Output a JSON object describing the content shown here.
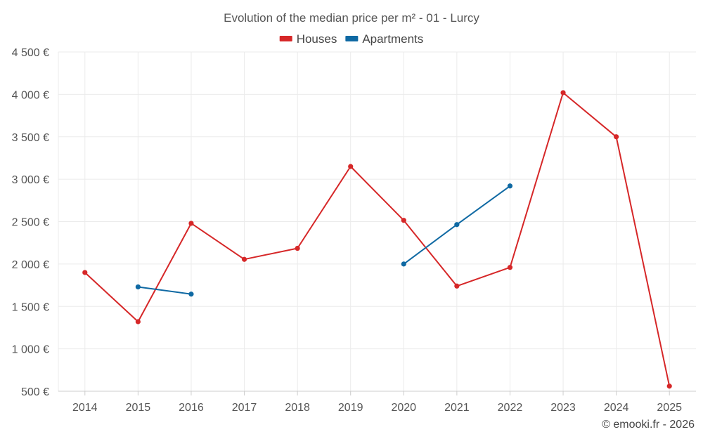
{
  "chart_data": {
    "type": "line",
    "title": "Evolution of the median price per m² - 01 - Lurcy",
    "categories": [
      "2014",
      "2015",
      "2016",
      "2017",
      "2018",
      "2019",
      "2020",
      "2021",
      "2022",
      "2023",
      "2024",
      "2025"
    ],
    "ylim": [
      500,
      4500
    ],
    "yticks": [
      500,
      1000,
      1500,
      2000,
      2500,
      3000,
      3500,
      4000,
      4500
    ],
    "ytick_labels": [
      "500 €",
      "1 000 €",
      "1 500 €",
      "2 000 €",
      "2 500 €",
      "3 000 €",
      "3 500 €",
      "4 000 €",
      "4 500 €"
    ],
    "xlabel": "",
    "ylabel": "",
    "legend_position": "top-center",
    "grid": true,
    "series": [
      {
        "name": "Houses",
        "color": "#d62728",
        "values": [
          1900,
          1320,
          2480,
          2055,
          2185,
          3150,
          2515,
          1740,
          1960,
          4020,
          3500,
          560
        ]
      },
      {
        "name": "Apartments",
        "color": "#0f69a3",
        "values": [
          null,
          1730,
          1645,
          null,
          null,
          null,
          2000,
          2465,
          2920,
          null,
          null,
          null
        ]
      }
    ],
    "credit": "© emooki.fr - 2026"
  }
}
